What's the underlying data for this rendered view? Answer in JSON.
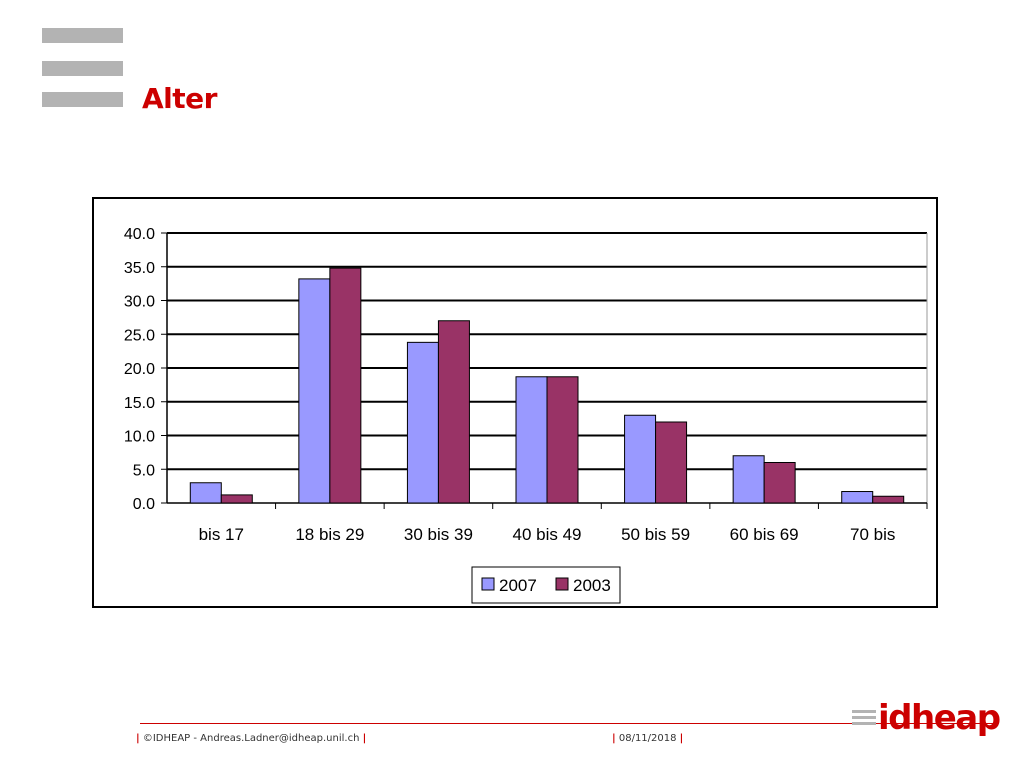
{
  "slide": {
    "title": "Alter",
    "footer_left": "©IDHEAP - Andreas.Ladner@idheap.unil.ch",
    "footer_date": "08/11/2018",
    "logo_text": "idheap",
    "accent_color": "#cc0000",
    "deco_color": "#b3b3b3"
  },
  "chart_data": {
    "type": "bar",
    "categories": [
      "bis 17",
      "18 bis 29",
      "30 bis 39",
      "40 bis 49",
      "50 bis 59",
      "60 bis 69",
      "70 bis"
    ],
    "series": [
      {
        "name": "2007",
        "color": "#9999ff",
        "values": [
          3.0,
          33.2,
          23.8,
          18.7,
          13.0,
          7.0,
          1.7
        ]
      },
      {
        "name": "2003",
        "color": "#993366",
        "values": [
          1.2,
          34.8,
          27.0,
          18.7,
          12.0,
          6.0,
          1.0
        ]
      }
    ],
    "ylim": [
      0,
      40
    ],
    "yticks": [
      "0.0",
      "5.0",
      "10.0",
      "15.0",
      "20.0",
      "25.0",
      "30.0",
      "35.0",
      "40.0"
    ],
    "grid": true,
    "legend": "bottom-center"
  }
}
